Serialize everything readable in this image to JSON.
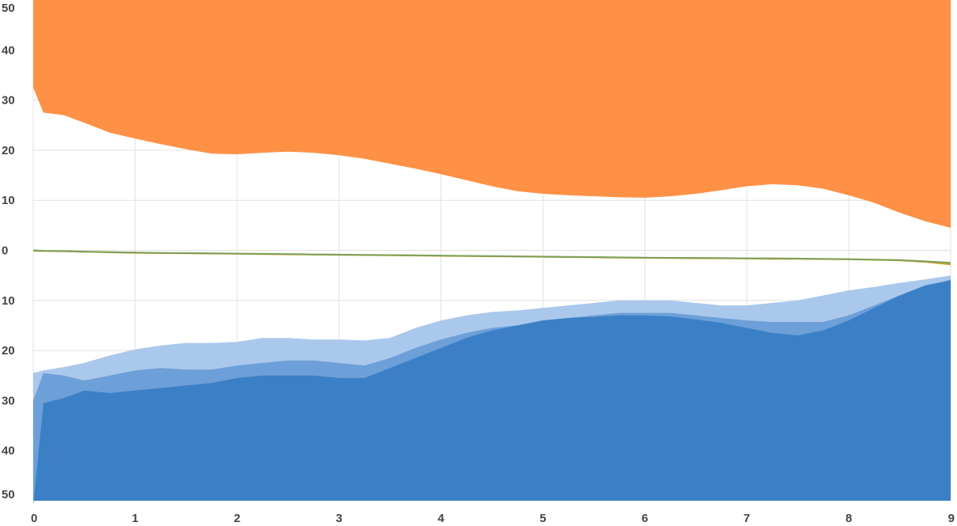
{
  "chart_data": {
    "type": "area",
    "title": "",
    "xlabel": "",
    "ylabel": "",
    "xlim": [
      0,
      9
    ],
    "ylim": [
      -50,
      50
    ],
    "grid": true,
    "legend": "none",
    "x_ticks": [
      {
        "value": 0,
        "label": "0"
      },
      {
        "value": 1,
        "label": "1"
      },
      {
        "value": 2,
        "label": "2"
      },
      {
        "value": 3,
        "label": "3"
      },
      {
        "value": 4,
        "label": "4"
      },
      {
        "value": 5,
        "label": "5"
      },
      {
        "value": 6,
        "label": "6"
      },
      {
        "value": 7,
        "label": "7"
      },
      {
        "value": 8,
        "label": "8"
      },
      {
        "value": 9,
        "label": "9"
      }
    ],
    "y_ticks": [
      {
        "value": 50,
        "label": "50"
      },
      {
        "value": 40,
        "label": "40"
      },
      {
        "value": 30,
        "label": "30"
      },
      {
        "value": 20,
        "label": "20"
      },
      {
        "value": 10,
        "label": "10"
      },
      {
        "value": 0,
        "label": "0"
      },
      {
        "value": -10,
        "label": "10"
      },
      {
        "value": -20,
        "label": "20"
      },
      {
        "value": -30,
        "label": "30"
      },
      {
        "value": -40,
        "label": "40"
      },
      {
        "value": -50,
        "label": "50"
      }
    ],
    "x": [
      0,
      0.1,
      0.3,
      0.5,
      0.75,
      1,
      1.25,
      1.5,
      1.75,
      2,
      2.25,
      2.5,
      2.75,
      3,
      3.25,
      3.5,
      3.75,
      4,
      4.25,
      4.5,
      4.75,
      5,
      5.25,
      5.5,
      5.75,
      6,
      6.25,
      6.5,
      6.75,
      7,
      7.25,
      7.5,
      7.75,
      8,
      8.25,
      8.5,
      8.75,
      9
    ],
    "series": [
      {
        "values": [
          40,
          33.8,
          33.8,
          32.5,
          31.5,
          30.5,
          29,
          27.8,
          26.8,
          26.5,
          26.5,
          26.5,
          26.3,
          26,
          25.5,
          25,
          24,
          22.5,
          20.5,
          19,
          17.8,
          16.8,
          16.2,
          15.8,
          15.5,
          15.3,
          15.3,
          15.8,
          16.5,
          17.5,
          18.2,
          18.3,
          17.8,
          16.3,
          14.5,
          12,
          10,
          7.5
        ],
        "color": "#cc5500",
        "side": "top"
      },
      {
        "values": [
          36,
          30,
          30.2,
          29.5,
          28.2,
          27,
          26,
          24.5,
          23.5,
          23.5,
          23.8,
          23.8,
          23.5,
          23.2,
          22.8,
          22,
          20.8,
          19.2,
          17.8,
          16.3,
          15,
          14.2,
          13.7,
          13.3,
          13,
          12.8,
          13,
          13.5,
          14.5,
          15.2,
          15.7,
          15.5,
          14.8,
          13.5,
          11.8,
          9.8,
          8,
          6
        ],
        "color": "#ff7f1e",
        "side": "top"
      },
      {
        "values": [
          32.5,
          27.5,
          27,
          25.5,
          23.5,
          22.3,
          21.2,
          20.2,
          19.3,
          19.2,
          19.5,
          19.7,
          19.5,
          19,
          18.3,
          17.3,
          16.3,
          15.2,
          14,
          12.8,
          11.8,
          11.3,
          11,
          10.8,
          10.6,
          10.5,
          10.8,
          11.3,
          12,
          12.8,
          13.2,
          13,
          12.3,
          11,
          9.5,
          7.5,
          5.8,
          4.5
        ],
        "color": "#ff9146",
        "side": "top"
      },
      {
        "values": [
          -24.5,
          -24,
          -23.3,
          -22.5,
          -21,
          -19.8,
          -19,
          -18.5,
          -18.5,
          -18.3,
          -17.5,
          -17.5,
          -17.8,
          -17.8,
          -18,
          -17.5,
          -15.5,
          -14,
          -13,
          -12.3,
          -12,
          -11.5,
          -11,
          -10.5,
          -10,
          -10,
          -10,
          -10.5,
          -11,
          -11,
          -10.5,
          -10,
          -9,
          -8,
          -7.3,
          -6.5,
          -5.8,
          -5
        ],
        "color": "#aac8ec",
        "side": "bottom"
      },
      {
        "values": [
          -30,
          -24.5,
          -25,
          -26,
          -25,
          -24,
          -23.5,
          -23.8,
          -23.8,
          -23,
          -22.5,
          -22,
          -22,
          -22.5,
          -23,
          -21.5,
          -19.5,
          -17.8,
          -16.5,
          -15.5,
          -15,
          -14,
          -13.5,
          -13,
          -12.5,
          -12.5,
          -12.5,
          -13,
          -13.5,
          -14,
          -14.3,
          -14.3,
          -14.3,
          -13,
          -11,
          -9,
          -7.3,
          -5.8
        ],
        "color": "#6d9fd8",
        "side": "bottom"
      },
      {
        "values": [
          -51,
          -30.5,
          -29.5,
          -28,
          -28.5,
          -28,
          -27.5,
          -27,
          -26.5,
          -25.5,
          -25,
          -25,
          -25,
          -25.5,
          -25.5,
          -23.5,
          -21.5,
          -19.5,
          -17.5,
          -16,
          -15,
          -14,
          -13.5,
          -13.3,
          -13,
          -13,
          -13.2,
          -13.8,
          -14.5,
          -15.5,
          -16.5,
          -17,
          -16,
          -14,
          -11.5,
          -9,
          -7,
          -6
        ],
        "color": "#3b80c6",
        "side": "bottom"
      },
      {
        "values": [
          -0.1,
          -0.15,
          -0.2,
          -0.3,
          -0.4,
          -0.5,
          -0.55,
          -0.6,
          -0.65,
          -0.7,
          -0.75,
          -0.8,
          -0.85,
          -0.9,
          -0.95,
          -1,
          -1.05,
          -1.1,
          -1.15,
          -1.2,
          -1.25,
          -1.3,
          -1.35,
          -1.4,
          -1.45,
          -1.5,
          -1.55,
          -1.6,
          -1.6,
          -1.65,
          -1.7,
          -1.7,
          -1.75,
          -1.8,
          -1.9,
          -2,
          -2.3,
          -2.8
        ],
        "color": "#d8a12a",
        "side": "line"
      },
      {
        "values": [
          0,
          -0.1,
          -0.15,
          -0.25,
          -0.35,
          -0.45,
          -0.5,
          -0.55,
          -0.6,
          -0.65,
          -0.7,
          -0.75,
          -0.8,
          -0.85,
          -0.9,
          -0.95,
          -1,
          -1.05,
          -1.1,
          -1.15,
          -1.2,
          -1.25,
          -1.3,
          -1.35,
          -1.4,
          -1.45,
          -1.5,
          -1.5,
          -1.55,
          -1.6,
          -1.6,
          -1.65,
          -1.7,
          -1.75,
          -1.85,
          -1.95,
          -2.2,
          -2.5
        ],
        "color": "#7ba05b",
        "side": "line"
      }
    ]
  }
}
